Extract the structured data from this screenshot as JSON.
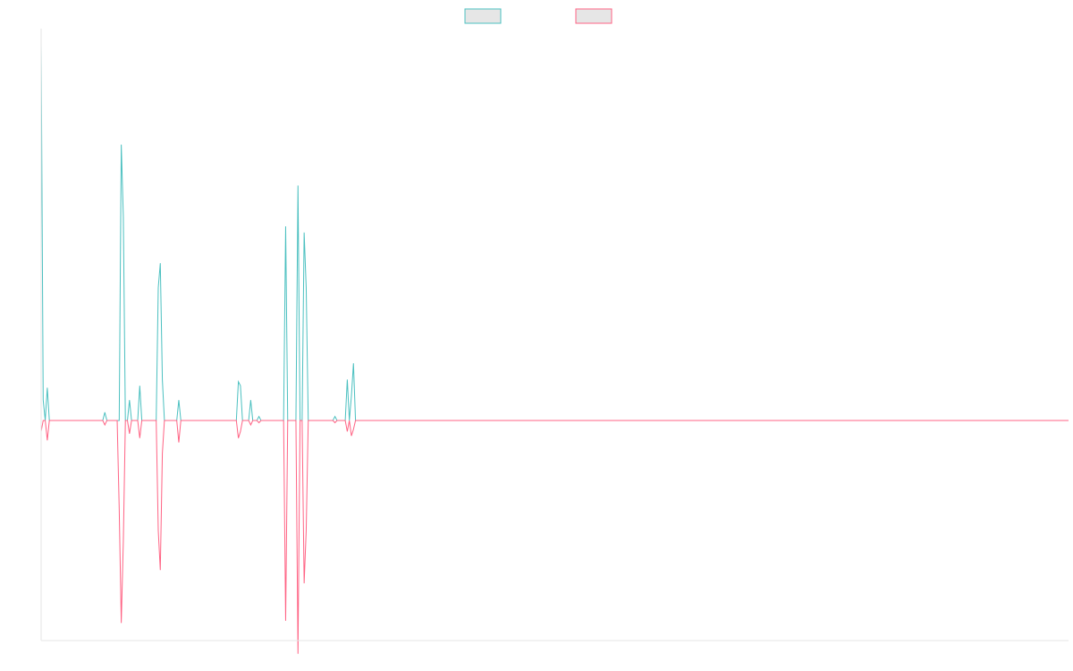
{
  "chart_data": {
    "type": "line",
    "title": "",
    "xlabel": "",
    "ylabel": "",
    "legend_position": "top-center",
    "grid": false,
    "ylim": [
      -1.0,
      1.9
    ],
    "xlim": [
      0,
      500
    ],
    "series": [
      {
        "color": "#4bc0c0",
        "legend_fill": "#e6e6e6",
        "label": "",
        "points": [
          [
            0,
            1.85
          ],
          [
            1,
            0.1
          ],
          [
            2,
            0.0
          ],
          [
            3,
            0.16
          ],
          [
            4,
            0.0
          ],
          [
            30,
            0.0
          ],
          [
            31,
            0.04
          ],
          [
            32,
            0.0
          ],
          [
            36,
            0.0
          ],
          [
            37,
            0.0
          ],
          [
            38,
            0.0
          ],
          [
            39,
            1.35
          ],
          [
            40,
            1.0
          ],
          [
            41,
            0.0
          ],
          [
            42,
            0.0
          ],
          [
            43,
            0.1
          ],
          [
            44,
            0.0
          ],
          [
            47,
            0.0
          ],
          [
            48,
            0.17
          ],
          [
            49,
            0.0
          ],
          [
            56,
            0.0
          ],
          [
            57,
            0.65
          ],
          [
            58,
            0.77
          ],
          [
            59,
            0.2
          ],
          [
            60,
            0.0
          ],
          [
            66,
            0.0
          ],
          [
            67,
            0.1
          ],
          [
            68,
            0.0
          ],
          [
            94,
            0.0
          ],
          [
            95,
            0.0
          ],
          [
            96,
            0.19
          ],
          [
            97,
            0.17
          ],
          [
            98,
            0.0
          ],
          [
            99,
            0.0
          ],
          [
            100,
            0.0
          ],
          [
            101,
            0.0
          ],
          [
            102,
            0.1
          ],
          [
            103,
            0.0
          ],
          [
            104,
            0.0
          ],
          [
            105,
            0.0
          ],
          [
            106,
            0.02
          ],
          [
            107,
            0.0
          ],
          [
            118,
            0.0
          ],
          [
            119,
            0.95
          ],
          [
            120,
            0.0
          ],
          [
            124,
            0.0
          ],
          [
            125,
            1.15
          ],
          [
            126,
            0.0
          ],
          [
            127,
            0.0
          ],
          [
            128,
            0.92
          ],
          [
            129,
            0.65
          ],
          [
            130,
            0.0
          ],
          [
            142,
            0.0
          ],
          [
            143,
            0.02
          ],
          [
            144,
            0.0
          ],
          [
            148,
            0.0
          ],
          [
            149,
            0.2
          ],
          [
            150,
            0.0
          ],
          [
            151,
            0.12
          ],
          [
            152,
            0.28
          ],
          [
            153,
            0.0
          ],
          [
            154,
            0.0
          ],
          [
            500,
            0.0
          ]
        ]
      },
      {
        "color": "#ff6384",
        "legend_fill": "#e6e6e6",
        "label": "",
        "points": [
          [
            0,
            -0.05
          ],
          [
            1,
            0.0
          ],
          [
            2,
            0.0
          ],
          [
            3,
            -0.09
          ],
          [
            4,
            0.0
          ],
          [
            30,
            0.0
          ],
          [
            31,
            -0.02
          ],
          [
            32,
            0.0
          ],
          [
            36,
            0.0
          ],
          [
            37,
            0.0
          ],
          [
            38,
            -0.4
          ],
          [
            39,
            -0.92
          ],
          [
            40,
            -0.55
          ],
          [
            41,
            0.0
          ],
          [
            42,
            0.0
          ],
          [
            43,
            -0.06
          ],
          [
            44,
            0.0
          ],
          [
            47,
            0.0
          ],
          [
            48,
            -0.08
          ],
          [
            49,
            0.0
          ],
          [
            56,
            0.0
          ],
          [
            57,
            -0.5
          ],
          [
            58,
            -0.68
          ],
          [
            59,
            -0.15
          ],
          [
            60,
            0.0
          ],
          [
            66,
            0.0
          ],
          [
            67,
            -0.1
          ],
          [
            68,
            0.0
          ],
          [
            94,
            0.0
          ],
          [
            95,
            0.0
          ],
          [
            96,
            -0.08
          ],
          [
            97,
            -0.05
          ],
          [
            98,
            0.0
          ],
          [
            99,
            0.0
          ],
          [
            100,
            0.0
          ],
          [
            101,
            0.0
          ],
          [
            102,
            -0.02
          ],
          [
            103,
            0.0
          ],
          [
            104,
            0.0
          ],
          [
            105,
            0.0
          ],
          [
            106,
            -0.01
          ],
          [
            107,
            0.0
          ],
          [
            118,
            0.0
          ],
          [
            119,
            -0.91
          ],
          [
            120,
            0.0
          ],
          [
            124,
            0.0
          ],
          [
            125,
            -1.06
          ],
          [
            126,
            0.0
          ],
          [
            127,
            0.0
          ],
          [
            128,
            -0.74
          ],
          [
            129,
            -0.5
          ],
          [
            130,
            0.0
          ],
          [
            142,
            0.0
          ],
          [
            143,
            -0.01
          ],
          [
            144,
            0.0
          ],
          [
            148,
            0.0
          ],
          [
            149,
            -0.05
          ],
          [
            150,
            0.0
          ],
          [
            151,
            -0.07
          ],
          [
            152,
            -0.04
          ],
          [
            153,
            0.0
          ],
          [
            154,
            0.0
          ],
          [
            500,
            0.0
          ]
        ]
      }
    ]
  }
}
